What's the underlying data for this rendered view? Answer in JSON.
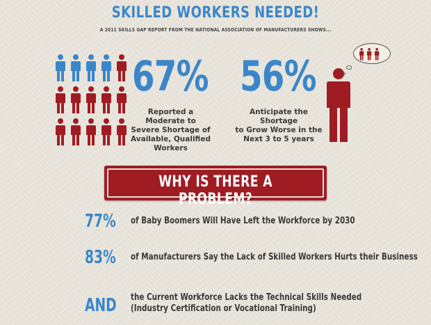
{
  "header": {
    "title": "SKILLED WORKERS NEEDED!",
    "subtitle": "A 2011 SKILLS GAP REPORT FROM THE NATIONAL ASSOCIATION OF MANUFACTURERS SHOWS..."
  },
  "stat1": {
    "value": "67%",
    "caption_lines": [
      "Reported a Moderate to",
      "Severe Shortage of",
      "Available, Qualified",
      "Workers"
    ]
  },
  "stat2": {
    "value": "56%",
    "caption_lines": [
      "Anticipate the Shortage",
      "to Grow Worse in the",
      "Next 3 to 5 years"
    ]
  },
  "banner": {
    "text": "WHY IS THERE A PROBLEM?"
  },
  "reasons": [
    {
      "stat": "77%",
      "text": "of Baby Boomers Will Have Left the Workforce by 2030"
    },
    {
      "stat": "83%",
      "text": "of Manufacturers Say the Lack of Skilled Workers Hurts their Business"
    },
    {
      "stat": "AND",
      "text_line1": "the Current Workforce Lacks the Technical Skills Needed",
      "text_line2": "(Industry Certification or Vocational Training)"
    }
  ],
  "colors": {
    "blue": "#3b86c9",
    "red": "#a01c23",
    "text": "#3a3a3a"
  }
}
